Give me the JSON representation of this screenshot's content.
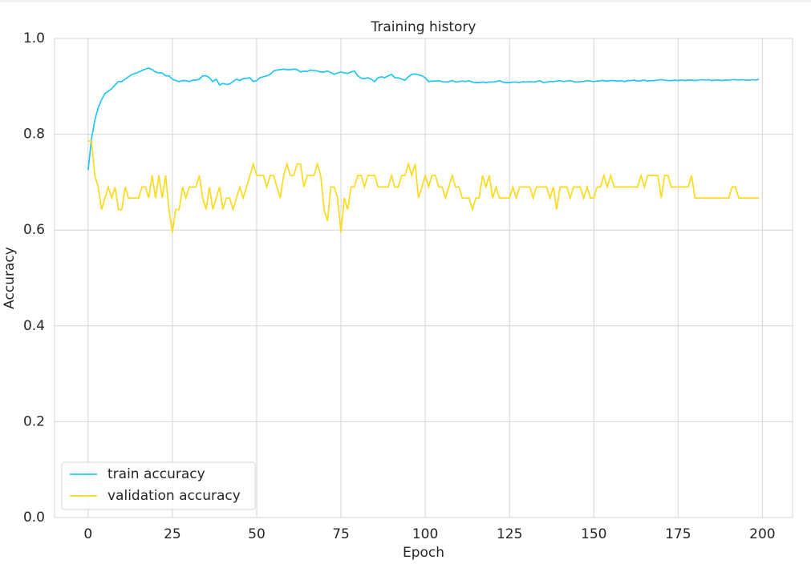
{
  "chart_data": {
    "type": "line",
    "title": "Training history",
    "xlabel": "Epoch",
    "ylabel": "Accuracy",
    "x": [
      0,
      1,
      2,
      3,
      4,
      5,
      6,
      7,
      8,
      9,
      10,
      11,
      12,
      13,
      14,
      15,
      16,
      17,
      18,
      19,
      20,
      21,
      22,
      23,
      24,
      25,
      26,
      27,
      28,
      29,
      30,
      31,
      32,
      33,
      34,
      35,
      36,
      37,
      38,
      39,
      40,
      41,
      42,
      43,
      44,
      45,
      46,
      47,
      48,
      49,
      50,
      51,
      52,
      53,
      54,
      55,
      56,
      57,
      58,
      59,
      60,
      61,
      62,
      63,
      64,
      65,
      66,
      67,
      68,
      69,
      70,
      71,
      72,
      73,
      74,
      75,
      76,
      77,
      78,
      79,
      80,
      81,
      82,
      83,
      84,
      85,
      86,
      87,
      88,
      89,
      90,
      91,
      92,
      93,
      94,
      95,
      96,
      97,
      98,
      99,
      100,
      101,
      102,
      103,
      104,
      105,
      106,
      107,
      108,
      109,
      110,
      111,
      112,
      113,
      114,
      115,
      116,
      117,
      118,
      119,
      120,
      121,
      122,
      123,
      124,
      125,
      126,
      127,
      128,
      129,
      130,
      131,
      132,
      133,
      134,
      135,
      136,
      137,
      138,
      139,
      140,
      141,
      142,
      143,
      144,
      145,
      146,
      147,
      148,
      149,
      150,
      151,
      152,
      153,
      154,
      155,
      156,
      157,
      158,
      159,
      160,
      161,
      162,
      163,
      164,
      165,
      166,
      167,
      168,
      169,
      170,
      171,
      172,
      173,
      174,
      175,
      176,
      177,
      178,
      179,
      180,
      181,
      182,
      183,
      184,
      185,
      186,
      187,
      188,
      189,
      190,
      191,
      192,
      193,
      194,
      195,
      196,
      197,
      198,
      199
    ],
    "series": [
      {
        "name": "train accuracy",
        "color": "#22c5f3",
        "values": [
          0.725,
          0.79,
          0.83,
          0.855,
          0.872,
          0.885,
          0.89,
          0.895,
          0.903,
          0.91,
          0.91,
          0.915,
          0.92,
          0.925,
          0.927,
          0.93,
          0.933,
          0.936,
          0.938,
          0.935,
          0.93,
          0.928,
          0.928,
          0.922,
          0.922,
          0.915,
          0.912,
          0.91,
          0.912,
          0.912,
          0.91,
          0.913,
          0.913,
          0.915,
          0.922,
          0.922,
          0.918,
          0.91,
          0.915,
          0.903,
          0.906,
          0.904,
          0.905,
          0.91,
          0.915,
          0.912,
          0.916,
          0.917,
          0.918,
          0.91,
          0.912,
          0.918,
          0.92,
          0.922,
          0.925,
          0.932,
          0.934,
          0.935,
          0.936,
          0.935,
          0.935,
          0.936,
          0.935,
          0.93,
          0.932,
          0.931,
          0.934,
          0.933,
          0.932,
          0.93,
          0.93,
          0.932,
          0.929,
          0.925,
          0.928,
          0.93,
          0.928,
          0.927,
          0.93,
          0.932,
          0.922,
          0.917,
          0.916,
          0.918,
          0.915,
          0.91,
          0.918,
          0.92,
          0.918,
          0.922,
          0.925,
          0.918,
          0.918,
          0.915,
          0.913,
          0.92,
          0.925,
          0.926,
          0.924,
          0.922,
          0.918,
          0.91,
          0.911,
          0.911,
          0.912,
          0.91,
          0.909,
          0.91,
          0.912,
          0.909,
          0.91,
          0.911,
          0.91,
          0.912,
          0.909,
          0.908,
          0.908,
          0.909,
          0.908,
          0.909,
          0.909,
          0.91,
          0.912,
          0.909,
          0.908,
          0.908,
          0.909,
          0.909,
          0.908,
          0.91,
          0.909,
          0.91,
          0.909,
          0.91,
          0.912,
          0.908,
          0.909,
          0.91,
          0.91,
          0.911,
          0.912,
          0.91,
          0.911,
          0.912,
          0.91,
          0.909,
          0.91,
          0.91,
          0.912,
          0.911,
          0.91,
          0.911,
          0.912,
          0.912,
          0.911,
          0.912,
          0.912,
          0.911,
          0.912,
          0.91,
          0.912,
          0.912,
          0.913,
          0.911,
          0.912,
          0.913,
          0.911,
          0.912,
          0.912,
          0.913,
          0.914,
          0.913,
          0.912,
          0.912,
          0.913,
          0.912,
          0.913,
          0.912,
          0.913,
          0.913,
          0.912,
          0.913,
          0.914,
          0.913,
          0.914,
          0.912,
          0.913,
          0.913,
          0.912,
          0.913,
          0.913,
          0.914,
          0.914,
          0.913,
          0.914,
          0.913,
          0.913,
          0.914,
          0.913,
          0.915
        ]
      },
      {
        "name": "validation accuracy",
        "color": "#fbdb1d",
        "values": [
          0.786,
          0.786,
          0.714,
          0.69,
          0.643,
          0.667,
          0.69,
          0.667,
          0.69,
          0.643,
          0.643,
          0.69,
          0.667,
          0.667,
          0.667,
          0.667,
          0.69,
          0.69,
          0.667,
          0.714,
          0.667,
          0.714,
          0.667,
          0.714,
          0.643,
          0.595,
          0.643,
          0.643,
          0.69,
          0.667,
          0.69,
          0.69,
          0.69,
          0.714,
          0.667,
          0.643,
          0.69,
          0.643,
          0.667,
          0.69,
          0.643,
          0.667,
          0.667,
          0.643,
          0.667,
          0.69,
          0.667,
          0.69,
          0.714,
          0.738,
          0.714,
          0.714,
          0.714,
          0.69,
          0.714,
          0.714,
          0.69,
          0.667,
          0.714,
          0.738,
          0.714,
          0.714,
          0.738,
          0.738,
          0.69,
          0.714,
          0.714,
          0.714,
          0.738,
          0.714,
          0.643,
          0.619,
          0.69,
          0.69,
          0.667,
          0.595,
          0.667,
          0.643,
          0.69,
          0.69,
          0.714,
          0.714,
          0.69,
          0.714,
          0.714,
          0.714,
          0.69,
          0.69,
          0.69,
          0.69,
          0.714,
          0.69,
          0.69,
          0.714,
          0.714,
          0.738,
          0.714,
          0.738,
          0.667,
          0.69,
          0.714,
          0.69,
          0.714,
          0.714,
          0.69,
          0.69,
          0.667,
          0.69,
          0.714,
          0.69,
          0.69,
          0.667,
          0.667,
          0.667,
          0.643,
          0.667,
          0.667,
          0.714,
          0.69,
          0.714,
          0.667,
          0.69,
          0.667,
          0.667,
          0.667,
          0.667,
          0.69,
          0.667,
          0.69,
          0.69,
          0.69,
          0.69,
          0.667,
          0.69,
          0.69,
          0.69,
          0.69,
          0.667,
          0.69,
          0.643,
          0.69,
          0.69,
          0.69,
          0.667,
          0.69,
          0.69,
          0.69,
          0.667,
          0.69,
          0.667,
          0.667,
          0.69,
          0.69,
          0.714,
          0.69,
          0.714,
          0.69,
          0.69,
          0.69,
          0.69,
          0.69,
          0.69,
          0.69,
          0.69,
          0.714,
          0.69,
          0.714,
          0.714,
          0.714,
          0.714,
          0.667,
          0.714,
          0.714,
          0.69,
          0.69,
          0.69,
          0.69,
          0.69,
          0.69,
          0.714,
          0.667,
          0.667,
          0.667,
          0.667,
          0.667,
          0.667,
          0.667,
          0.667,
          0.667,
          0.667,
          0.667,
          0.69,
          0.69,
          0.667,
          0.667,
          0.667,
          0.667,
          0.667,
          0.667,
          0.667
        ]
      }
    ],
    "xlim": [
      -9.95,
      208.95
    ],
    "xticks": [
      0,
      25,
      50,
      75,
      100,
      125,
      150,
      175,
      200
    ],
    "ylim": [
      0,
      1
    ],
    "yticks": [
      {
        "value": 0,
        "label": "0.0"
      },
      0.2,
      0.4,
      0.6,
      0.8,
      {
        "value": 1,
        "label": "1.0"
      }
    ],
    "grid": true,
    "legend": "lower left"
  }
}
